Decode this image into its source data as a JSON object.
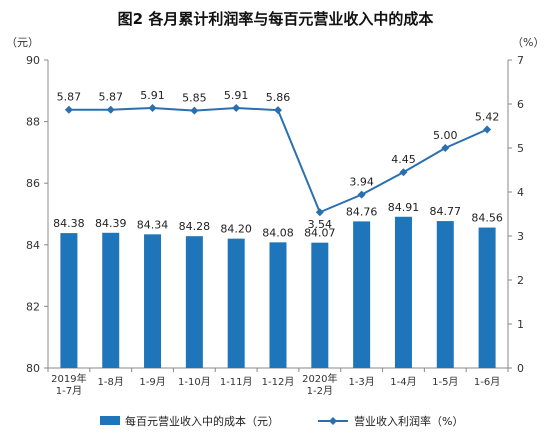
{
  "chart_data": {
    "title": "图2 各月累计利润率与每百元营业收入中的成本",
    "type": "bar+line",
    "left_axis_unit": "（元）",
    "right_axis_unit": "（%）",
    "left_ylim": [
      80,
      90
    ],
    "left_ticks": [
      "80",
      "82",
      "84",
      "86",
      "88",
      "90"
    ],
    "right_ylim": [
      0,
      7
    ],
    "right_ticks": [
      "0",
      "1",
      "2",
      "3",
      "4",
      "5",
      "6",
      "7"
    ],
    "categories": [
      [
        "2019年",
        "1-7月"
      ],
      [
        "1-8月"
      ],
      [
        "1-9月"
      ],
      [
        "1-10月"
      ],
      [
        "1-11月"
      ],
      [
        "1-12月"
      ],
      [
        "2020年",
        "1-2月"
      ],
      [
        "1-3月"
      ],
      [
        "1-4月"
      ],
      [
        "1-5月"
      ],
      [
        "1-6月"
      ]
    ],
    "series": [
      {
        "name": "每百元营业收入中的成本（元）",
        "type": "bar",
        "axis": "left",
        "color": "#1f75b9",
        "values": [
          84.38,
          84.39,
          84.34,
          84.28,
          84.2,
          84.08,
          84.07,
          84.76,
          84.91,
          84.77,
          84.56
        ],
        "labels": [
          "84.38",
          "84.39",
          "84.34",
          "84.28",
          "84.20",
          "84.08",
          "84.07",
          "84.76",
          "84.91",
          "84.77",
          "84.56"
        ]
      },
      {
        "name": "营业收入利润率（%）",
        "type": "line",
        "axis": "right",
        "color": "#2a6fb0",
        "values": [
          5.87,
          5.87,
          5.91,
          5.85,
          5.91,
          5.86,
          3.54,
          3.94,
          4.45,
          5.0,
          5.42
        ],
        "labels": [
          "5.87",
          "5.87",
          "5.91",
          "5.85",
          "5.91",
          "5.86",
          "3.54",
          "3.94",
          "4.45",
          "5.00",
          "5.42"
        ]
      }
    ],
    "legend_position": "bottom"
  }
}
